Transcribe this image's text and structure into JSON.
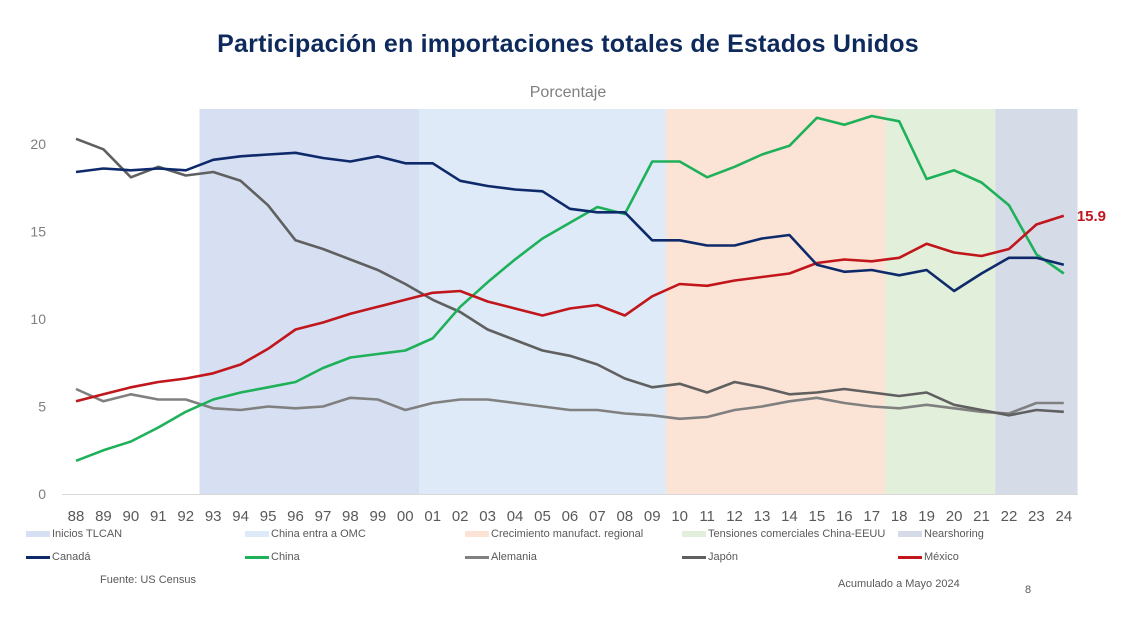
{
  "title": "Participación en importaciones totales de Estados Unidos",
  "subtitle": "Porcentaje",
  "source": "Fuente: US Census",
  "footnote": "Acumulado a Mayo 2024",
  "page_number": "8",
  "chart_data": {
    "type": "line",
    "title": "Participación en importaciones totales de Estados Unidos",
    "ylabel": "Porcentaje",
    "xlabel": "",
    "ylim": [
      0,
      22
    ],
    "yticks": [
      0,
      5,
      10,
      15,
      20
    ],
    "grid": false,
    "legend_position": "bottom",
    "x": [
      "88",
      "89",
      "90",
      "91",
      "92",
      "93",
      "94",
      "95",
      "96",
      "97",
      "98",
      "99",
      "00",
      "01",
      "02",
      "03",
      "04",
      "05",
      "06",
      "07",
      "08",
      "09",
      "10",
      "11",
      "12",
      "13",
      "14",
      "15",
      "16",
      "17",
      "18",
      "19",
      "20",
      "21",
      "22",
      "23",
      "24"
    ],
    "bands": [
      {
        "name": "Inicios TLCAN",
        "from": "93",
        "to": "00",
        "color": "#d6e0f2"
      },
      {
        "name": "China entra a OMC",
        "from": "01",
        "to": "09",
        "color": "#deeaf7"
      },
      {
        "name": "Crecimiento manufact. regional",
        "from": "10",
        "to": "17",
        "color": "#fbe4d6"
      },
      {
        "name": "Tensiones comerciales China-EEUU",
        "from": "18",
        "to": "21",
        "color": "#e2efda"
      },
      {
        "name": "Nearshoring",
        "from": "22",
        "to": "24",
        "color": "#d5dce7"
      }
    ],
    "series": [
      {
        "name": "Canadá",
        "color": "#0e2a6b",
        "values": [
          18.4,
          18.6,
          18.5,
          18.6,
          18.5,
          19.1,
          19.3,
          19.4,
          19.5,
          19.2,
          19.0,
          19.3,
          18.9,
          18.9,
          17.9,
          17.6,
          17.4,
          17.3,
          16.3,
          16.1,
          16.1,
          14.5,
          14.5,
          14.2,
          14.2,
          14.6,
          14.8,
          13.1,
          12.7,
          12.8,
          12.5,
          12.8,
          11.6,
          12.6,
          13.5,
          13.5,
          13.1
        ]
      },
      {
        "name": "China",
        "color": "#1fb05a",
        "values": [
          1.9,
          2.5,
          3.0,
          3.8,
          4.7,
          5.4,
          5.8,
          6.1,
          6.4,
          7.2,
          7.8,
          8.0,
          8.2,
          8.9,
          10.7,
          12.1,
          13.4,
          14.6,
          15.5,
          16.4,
          16.0,
          19.0,
          19.0,
          18.1,
          18.7,
          19.4,
          19.9,
          21.5,
          21.1,
          21.6,
          21.3,
          18.0,
          18.5,
          17.8,
          16.5,
          13.7,
          12.6
        ]
      },
      {
        "name": "Alemania",
        "color": "#808080",
        "values": [
          6.0,
          5.3,
          5.7,
          5.4,
          5.4,
          4.9,
          4.8,
          5.0,
          4.9,
          5.0,
          5.5,
          5.4,
          4.8,
          5.2,
          5.4,
          5.4,
          5.2,
          5.0,
          4.8,
          4.8,
          4.6,
          4.5,
          4.3,
          4.4,
          4.8,
          5.0,
          5.3,
          5.5,
          5.2,
          5.0,
          4.9,
          5.1,
          4.9,
          4.7,
          4.6,
          5.2,
          5.2
        ]
      },
      {
        "name": "Japón",
        "color": "#606060",
        "values": [
          20.3,
          19.7,
          18.1,
          18.7,
          18.2,
          18.4,
          17.9,
          16.5,
          14.5,
          14.0,
          13.4,
          12.8,
          12.0,
          11.1,
          10.4,
          9.4,
          8.8,
          8.2,
          7.9,
          7.4,
          6.6,
          6.1,
          6.3,
          5.8,
          6.4,
          6.1,
          5.7,
          5.8,
          6.0,
          5.8,
          5.6,
          5.8,
          5.1,
          4.8,
          4.5,
          4.8,
          4.7
        ]
      },
      {
        "name": "México",
        "color": "#c0161c",
        "values": [
          5.3,
          5.7,
          6.1,
          6.4,
          6.6,
          6.9,
          7.4,
          8.3,
          9.4,
          9.8,
          10.3,
          10.7,
          11.1,
          11.5,
          11.6,
          11.0,
          10.6,
          10.2,
          10.6,
          10.8,
          10.2,
          11.3,
          12.0,
          11.9,
          12.2,
          12.4,
          12.6,
          13.2,
          13.4,
          13.3,
          13.5,
          14.3,
          13.8,
          13.6,
          14.0,
          15.4,
          15.9
        ]
      }
    ],
    "annotations": [
      {
        "series": "México",
        "x": "24",
        "text": "15.9",
        "color": "#c0161c"
      }
    ]
  }
}
